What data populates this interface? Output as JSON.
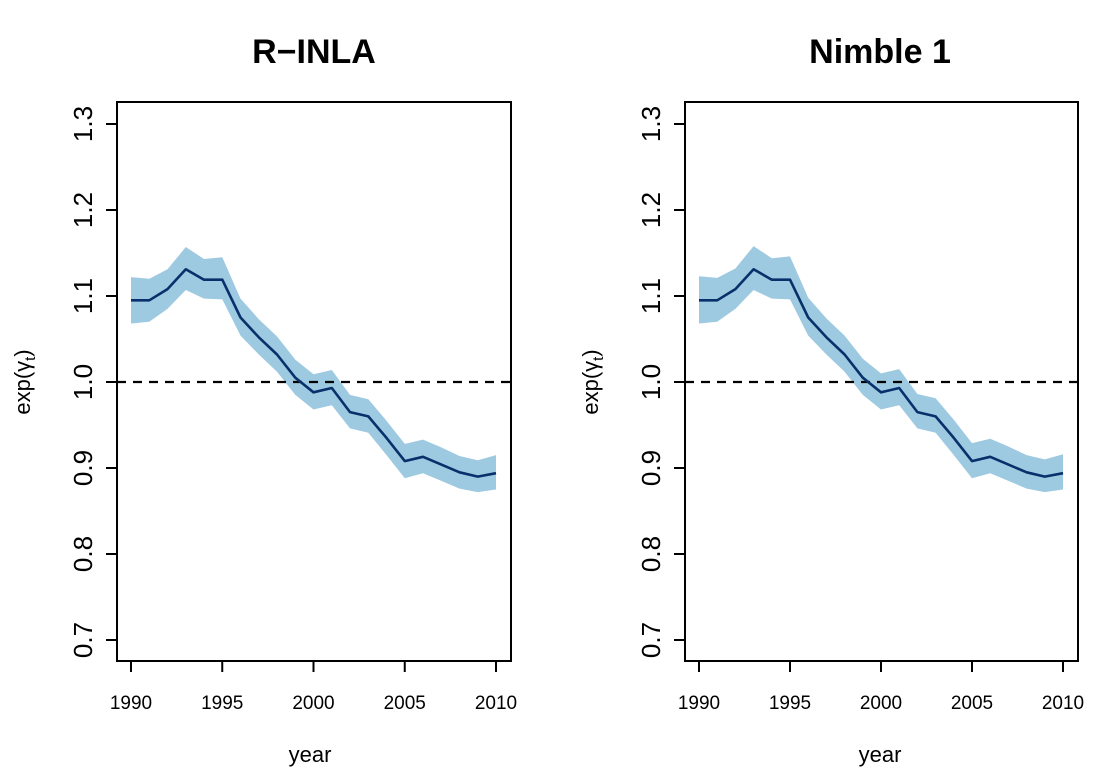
{
  "chart_data": [
    {
      "type": "line",
      "title": "R−INLA",
      "xlabel": "year",
      "ylabel": "exp(γt)",
      "ylabel_main": "exp(",
      "ylabel_symbol": "γ",
      "ylabel_sub": "t",
      "ylabel_close": ")",
      "xlim": [
        1990,
        2010
      ],
      "ylim": [
        0.7,
        1.3
      ],
      "x_ticks": [
        "1990",
        "1995",
        "2000",
        "2005",
        "2010"
      ],
      "y_ticks": [
        "0.7",
        "0.8",
        "0.9",
        "1.0",
        "1.1",
        "1.2",
        "1.3"
      ],
      "reference_line": 1.0,
      "colors": {
        "band": "#9ecae1",
        "line": "#08306b",
        "reference": "#000000"
      },
      "x": [
        1990,
        1991,
        1992,
        1993,
        1994,
        1995,
        1996,
        1997,
        1998,
        1999,
        2000,
        2001,
        2002,
        2003,
        2004,
        2005,
        2006,
        2007,
        2008,
        2009,
        2010
      ],
      "series": [
        {
          "values": [
            1.095,
            1.095,
            1.108,
            1.131,
            1.119,
            1.119,
            1.075,
            1.052,
            1.032,
            1.005,
            0.988,
            0.993,
            0.965,
            0.96,
            0.935,
            0.908,
            0.913,
            0.904,
            0.895,
            0.89,
            0.894
          ]
        }
      ],
      "band": {
        "lower": [
          1.068,
          1.07,
          1.085,
          1.107,
          1.097,
          1.096,
          1.054,
          1.032,
          1.012,
          0.985,
          0.968,
          0.973,
          0.946,
          0.941,
          0.915,
          0.888,
          0.894,
          0.885,
          0.876,
          0.872,
          0.875
        ],
        "upper": [
          1.122,
          1.12,
          1.131,
          1.157,
          1.143,
          1.145,
          1.097,
          1.073,
          1.053,
          1.026,
          1.009,
          1.014,
          0.985,
          0.98,
          0.955,
          0.928,
          0.933,
          0.924,
          0.914,
          0.909,
          0.915
        ]
      }
    },
    {
      "type": "line",
      "title": "Nimble 1",
      "xlabel": "year",
      "ylabel": "exp(γt)",
      "ylabel_main": "exp(",
      "ylabel_symbol": "γ",
      "ylabel_sub": "t",
      "ylabel_close": ")",
      "xlim": [
        1990,
        2010
      ],
      "ylim": [
        0.7,
        1.3
      ],
      "x_ticks": [
        "1990",
        "1995",
        "2000",
        "2005",
        "2010"
      ],
      "y_ticks": [
        "0.7",
        "0.8",
        "0.9",
        "1.0",
        "1.1",
        "1.2",
        "1.3"
      ],
      "reference_line": 1.0,
      "colors": {
        "band": "#9ecae1",
        "line": "#08306b",
        "reference": "#000000"
      },
      "x": [
        1990,
        1991,
        1992,
        1993,
        1994,
        1995,
        1996,
        1997,
        1998,
        1999,
        2000,
        2001,
        2002,
        2003,
        2004,
        2005,
        2006,
        2007,
        2008,
        2009,
        2010
      ],
      "series": [
        {
          "values": [
            1.095,
            1.095,
            1.108,
            1.131,
            1.119,
            1.119,
            1.075,
            1.052,
            1.032,
            1.005,
            0.988,
            0.993,
            0.965,
            0.96,
            0.935,
            0.908,
            0.913,
            0.904,
            0.895,
            0.89,
            0.894
          ]
        }
      ],
      "band": {
        "lower": [
          1.068,
          1.07,
          1.085,
          1.107,
          1.097,
          1.096,
          1.054,
          1.032,
          1.012,
          0.985,
          0.968,
          0.973,
          0.946,
          0.941,
          0.915,
          0.888,
          0.894,
          0.885,
          0.876,
          0.872,
          0.875
        ],
        "upper": [
          1.123,
          1.121,
          1.132,
          1.158,
          1.144,
          1.146,
          1.098,
          1.074,
          1.054,
          1.027,
          1.01,
          1.015,
          0.986,
          0.981,
          0.956,
          0.929,
          0.934,
          0.925,
          0.915,
          0.91,
          0.916
        ]
      }
    }
  ]
}
